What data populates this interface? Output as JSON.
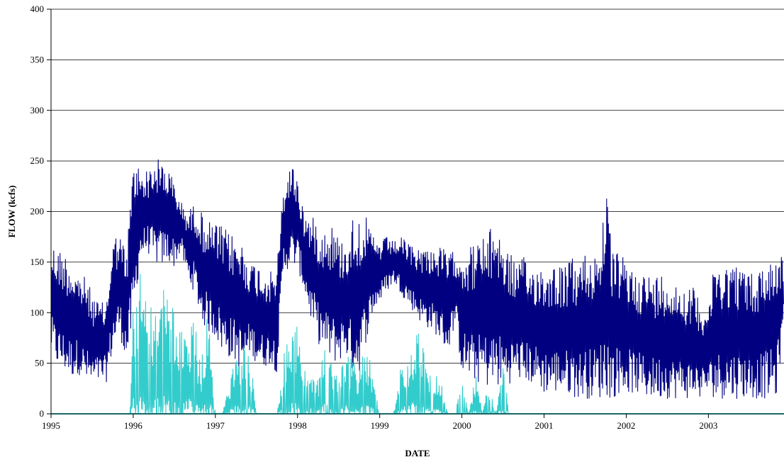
{
  "chart_data": {
    "type": "line",
    "title": "",
    "xlabel": "DATE",
    "ylabel": "FLOW  (kcfs)",
    "x_tick_labels": [
      "1995",
      "1996",
      "1997",
      "1998",
      "1999",
      "2000",
      "2001",
      "2002",
      "2003"
    ],
    "y_tick_labels": [
      "0",
      "50",
      "100",
      "150",
      "200",
      "250",
      "300",
      "350",
      "400"
    ],
    "xlim": [
      1995.0,
      2003.92
    ],
    "ylim": [
      0,
      400
    ],
    "grid": "horizontal",
    "legend": "none",
    "series": [
      {
        "color": "#000080",
        "x": [
          1995.0,
          1995.08,
          1995.17,
          1995.25,
          1995.33,
          1995.42,
          1995.5,
          1995.58,
          1995.67,
          1995.75,
          1995.83,
          1995.92,
          1996.0,
          1996.08,
          1996.17,
          1996.25,
          1996.33,
          1996.42,
          1996.5,
          1996.58,
          1996.67,
          1996.75,
          1996.83,
          1996.92,
          1997.0,
          1997.08,
          1997.17,
          1997.25,
          1997.33,
          1997.42,
          1997.5,
          1997.58,
          1997.67,
          1997.75,
          1997.83,
          1997.92,
          1998.0,
          1998.08,
          1998.17,
          1998.25,
          1998.33,
          1998.42,
          1998.5,
          1998.58,
          1998.67,
          1998.75,
          1998.83,
          1998.92,
          1999.0,
          1999.08,
          1999.17,
          1999.25,
          1999.33,
          1999.42,
          1999.5,
          1999.58,
          1999.67,
          1999.75,
          1999.83,
          1999.92,
          2000.0,
          2000.08,
          2000.17,
          2000.25,
          2000.33,
          2000.42,
          2000.5,
          2000.58,
          2000.67,
          2000.75,
          2000.83,
          2000.92,
          2001.0,
          2001.08,
          2001.17,
          2001.25,
          2001.33,
          2001.42,
          2001.5,
          2001.58,
          2001.67,
          2001.75,
          2001.83,
          2001.92,
          2002.0,
          2002.08,
          2002.17,
          2002.25,
          2002.33,
          2002.42,
          2002.5,
          2002.58,
          2002.67,
          2002.75,
          2002.83,
          2002.92,
          2003.0,
          2003.08,
          2003.17,
          2003.25,
          2003.33,
          2003.42,
          2003.5,
          2003.58,
          2003.67,
          2003.75,
          2003.83,
          2003.92
        ],
        "lo": [
          60,
          45,
          40,
          35,
          40,
          30,
          25,
          30,
          30,
          60,
          80,
          50,
          85,
          150,
          160,
          150,
          145,
          150,
          145,
          160,
          130,
          120,
          90,
          80,
          75,
          60,
          55,
          50,
          40,
          60,
          50,
          45,
          50,
          40,
          140,
          145,
          145,
          120,
          90,
          70,
          60,
          50,
          50,
          60,
          40,
          40,
          70,
          100,
          110,
          120,
          130,
          120,
          110,
          100,
          90,
          85,
          80,
          70,
          60,
          90,
          40,
          35,
          30,
          30,
          25,
          25,
          25,
          30,
          35,
          30,
          30,
          25,
          20,
          20,
          20,
          20,
          18,
          15,
          15,
          15,
          15,
          15,
          15,
          20,
          20,
          20,
          18,
          15,
          15,
          15,
          15,
          15,
          15,
          15,
          15,
          15,
          20,
          15,
          15,
          15,
          15,
          15,
          15,
          15,
          15,
          15,
          15,
          90
        ],
        "hi": [
          170,
          165,
          160,
          150,
          140,
          135,
          120,
          110,
          110,
          175,
          180,
          160,
          255,
          245,
          240,
          250,
          253,
          245,
          230,
          210,
          200,
          210,
          200,
          190,
          190,
          185,
          180,
          175,
          170,
          150,
          150,
          145,
          140,
          150,
          225,
          250,
          235,
          200,
          195,
          190,
          185,
          190,
          175,
          170,
          195,
          200,
          195,
          175,
          170,
          175,
          170,
          175,
          170,
          165,
          165,
          165,
          165,
          165,
          160,
          160,
          165,
          165,
          170,
          175,
          180,
          195,
          170,
          160,
          150,
          155,
          145,
          150,
          145,
          150,
          150,
          145,
          155,
          150,
          160,
          160,
          165,
          225,
          160,
          160,
          150,
          145,
          140,
          140,
          135,
          140,
          140,
          130,
          130,
          125,
          125,
          110,
          110,
          150,
          150,
          150,
          150,
          145,
          140,
          140,
          150,
          155,
          160,
          155
        ]
      },
      {
        "color": "#33CCCC",
        "x": [
          1995.0,
          1995.96,
          1996.0,
          1996.08,
          1996.17,
          1996.25,
          1996.33,
          1996.42,
          1996.5,
          1996.58,
          1996.67,
          1996.75,
          1996.83,
          1996.9,
          1997.0,
          1997.08,
          1997.17,
          1997.25,
          1997.33,
          1997.42,
          1997.5,
          1997.6,
          1997.75,
          1997.83,
          1997.92,
          1998.0,
          1998.08,
          1998.17,
          1998.25,
          1998.33,
          1998.42,
          1998.5,
          1998.58,
          1998.67,
          1998.75,
          1998.83,
          1998.92,
          1999.0,
          1999.08,
          1999.17,
          1999.25,
          1999.33,
          1999.42,
          1999.5,
          1999.58,
          1999.67,
          1999.75,
          1999.83,
          1999.92,
          2000.0,
          2000.08,
          2000.17,
          2000.25,
          2000.33,
          2000.42,
          2000.5,
          2000.58,
          2003.92
        ],
        "hi": [
          0,
          0,
          110,
          165,
          115,
          105,
          120,
          125,
          105,
          80,
          100,
          90,
          50,
          110,
          0,
          0,
          30,
          60,
          70,
          65,
          0,
          0,
          0,
          60,
          85,
          90,
          45,
          40,
          35,
          70,
          50,
          40,
          60,
          55,
          45,
          70,
          40,
          0,
          0,
          0,
          45,
          60,
          80,
          85,
          50,
          45,
          30,
          0,
          0,
          35,
          0,
          40,
          0,
          35,
          0,
          55,
          0,
          0
        ]
      }
    ]
  }
}
